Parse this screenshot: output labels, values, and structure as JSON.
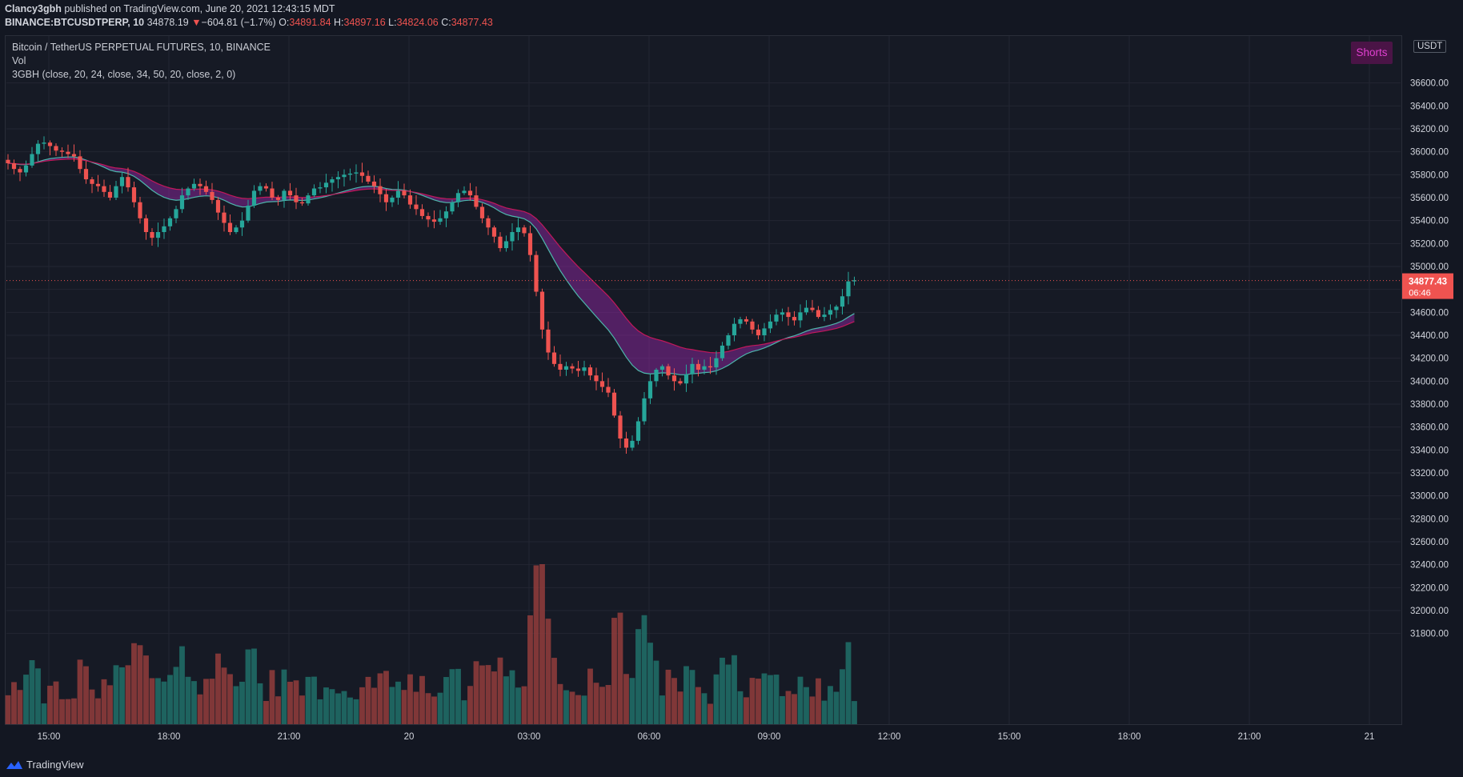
{
  "header": {
    "publisher": "Clancy3gbh",
    "published_text": " published on TradingView.com, June 20, 2021 12:43:15 MDT",
    "symbol": "BINANCE:BTCUSDTPERP, 10",
    "last_price": "34878.19",
    "change_arrow": "▼",
    "change": "−604.81 (−1.7%)",
    "o_label": "O:",
    "o_value": "34891.84",
    "h_label": "H:",
    "h_value": "34897.16",
    "l_label": "L:",
    "l_value": "34824.06",
    "c_label": "C:",
    "c_value": "34877.43"
  },
  "legend": {
    "title": "Bitcoin / TetherUS PERPETUAL FUTURES, 10, BINANCE",
    "vol": "Vol",
    "indicator": "3GBH (close, 20, 24, close, 34, 50, 20, close, 2, 0)"
  },
  "badges": {
    "shorts": "Shorts",
    "currency": "USDT"
  },
  "price_tag": {
    "price": "34877.43",
    "countdown": "06:46"
  },
  "footer": {
    "brand": "TradingView"
  },
  "colors": {
    "bull": "#26a69a",
    "bear": "#ef5350",
    "cloud": "#9c27b0",
    "bg": "#161a25"
  },
  "chart_data": {
    "type": "candlestick",
    "title": "Bitcoin / TetherUS PERPETUAL FUTURES, 10, BINANCE",
    "y_ticks": [
      "36600.00",
      "36400.00",
      "36200.00",
      "36000.00",
      "35800.00",
      "35600.00",
      "35400.00",
      "35200.00",
      "35000.00",
      "34800.00",
      "34600.00",
      "34400.00",
      "34200.00",
      "34000.00",
      "33800.00",
      "33600.00",
      "33400.00",
      "33200.00",
      "33000.00",
      "32800.00",
      "32600.00",
      "32400.00",
      "32200.00",
      "32000.00",
      "31800.00"
    ],
    "x_ticks": [
      "15:00",
      "18:00",
      "21:00",
      "20",
      "03:00",
      "06:00",
      "09:00",
      "12:00",
      "15:00",
      "18:00",
      "21:00",
      "21"
    ],
    "ylim": [
      31600,
      36650
    ],
    "closes": [
      35900,
      35850,
      35820,
      35880,
      35980,
      36070,
      36080,
      36050,
      36010,
      36000,
      35980,
      35960,
      35850,
      35760,
      35720,
      35700,
      35650,
      35600,
      35700,
      35780,
      35690,
      35560,
      35420,
      35300,
      35250,
      35300,
      35350,
      35420,
      35500,
      35620,
      35680,
      35720,
      35700,
      35650,
      35580,
      35470,
      35380,
      35300,
      35340,
      35400,
      35530,
      35660,
      35700,
      35680,
      35600,
      35580,
      35660,
      35620,
      35560,
      35550,
      35620,
      35680,
      35690,
      35730,
      35760,
      35780,
      35800,
      35810,
      35820,
      35790,
      35740,
      35700,
      35630,
      35560,
      35600,
      35660,
      35620,
      35540,
      35500,
      35440,
      35410,
      35390,
      35420,
      35480,
      35560,
      35640,
      35660,
      35620,
      35520,
      35420,
      35340,
      35260,
      35160,
      35220,
      35300,
      35340,
      35290,
      35100,
      34780,
      34450,
      34250,
      34150,
      34100,
      34130,
      34110,
      34090,
      34120,
      34050,
      34000,
      33950,
      33900,
      33700,
      33500,
      33420,
      33480,
      33650,
      33850,
      34000,
      34100,
      34130,
      34050,
      34000,
      33980,
      34060,
      34150,
      34100,
      34130,
      34120,
      34200,
      34310,
      34400,
      34500,
      34540,
      34520,
      34450,
      34400,
      34460,
      34520,
      34580,
      34600,
      34560,
      34530,
      34600,
      34640,
      34620,
      34560,
      34580,
      34620,
      34650,
      34740,
      34870,
      34880
    ]
  }
}
